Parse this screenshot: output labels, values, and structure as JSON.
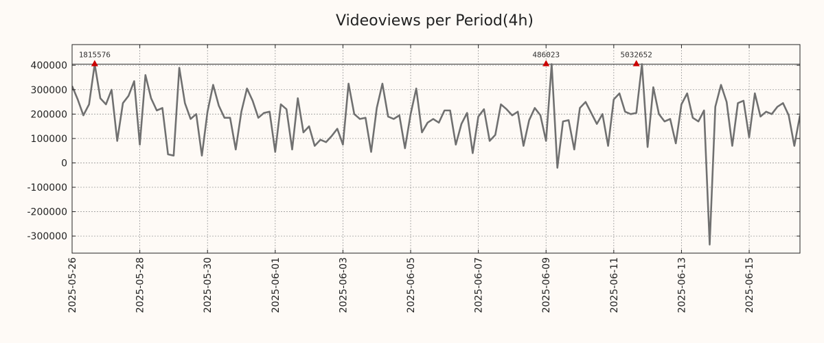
{
  "chart_data": {
    "type": "line",
    "title": "Videoviews per Period(4h)",
    "xlabel": "",
    "ylabel": "",
    "period_hours": 4,
    "x_start": "2025-05-26T00:00",
    "xlim": [
      "2025-05-26T00:00",
      "2025-06-16T12:00"
    ],
    "ylim": [
      -370000,
      485000
    ],
    "yticks": [
      -300000,
      -200000,
      -100000,
      0,
      100000,
      200000,
      300000,
      400000
    ],
    "ytick_labels": [
      "-300000",
      "-200000",
      "-100000",
      "0",
      "100000",
      "200000",
      "300000",
      "400000"
    ],
    "xticks": [
      "2025-05-26",
      "2025-05-28",
      "2025-05-30",
      "2025-06-01",
      "2025-06-03",
      "2025-06-05",
      "2025-06-07",
      "2025-06-09",
      "2025-06-11",
      "2025-06-13",
      "2025-06-15"
    ],
    "grid": true,
    "reference_line": 405000,
    "line_color": "#707070",
    "marker_color": "#cc0000",
    "peaks": [
      {
        "date": "2025-05-26T16:00",
        "label": "1815576"
      },
      {
        "date": "2025-06-09T00:00",
        "label": "486023"
      },
      {
        "date": "2025-06-11T16:00",
        "label": "5032652"
      }
    ],
    "series": [
      {
        "values": [
          315000,
          260000,
          195000,
          240000,
          405000,
          265000,
          240000,
          300000,
          90000,
          245000,
          275000,
          335000,
          75000,
          360000,
          265000,
          215000,
          225000,
          35000,
          30000,
          390000,
          245000,
          180000,
          200000,
          30000,
          210000,
          320000,
          235000,
          185000,
          185000,
          55000,
          210000,
          305000,
          255000,
          185000,
          205000,
          210000,
          45000,
          240000,
          220000,
          55000,
          265000,
          125000,
          150000,
          70000,
          95000,
          85000,
          110000,
          140000,
          75000,
          325000,
          200000,
          180000,
          185000,
          45000,
          225000,
          325000,
          190000,
          180000,
          195000,
          60000,
          200000,
          305000,
          125000,
          165000,
          180000,
          165000,
          215000,
          215000,
          75000,
          160000,
          205000,
          40000,
          190000,
          220000,
          90000,
          115000,
          240000,
          220000,
          195000,
          210000,
          70000,
          175000,
          225000,
          195000,
          90000,
          405000,
          -20000,
          170000,
          175000,
          55000,
          225000,
          250000,
          205000,
          160000,
          200000,
          70000,
          260000,
          285000,
          210000,
          200000,
          205000,
          405000,
          65000,
          310000,
          200000,
          170000,
          180000,
          80000,
          240000,
          285000,
          185000,
          170000,
          215000,
          -335000,
          230000,
          320000,
          250000,
          70000,
          245000,
          255000,
          105000,
          285000,
          190000,
          210000,
          200000,
          230000,
          245000,
          195000,
          70000,
          195000
        ]
      }
    ]
  }
}
